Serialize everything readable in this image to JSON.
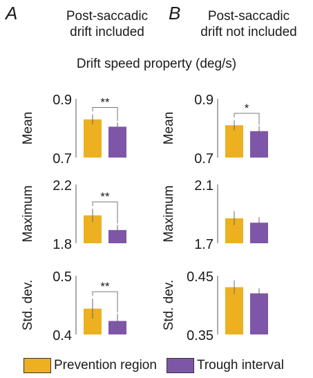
{
  "panels": {
    "A": {
      "letter": "A",
      "title_line1": "Post-saccadic",
      "title_line2": "drift included"
    },
    "B": {
      "letter": "B",
      "title_line1": "Post-saccadic",
      "title_line2": "drift not included"
    }
  },
  "main_title": "Drift speed property (deg/s)",
  "legend": {
    "prevention": {
      "label": "Prevention region",
      "color": "#ecb021"
    },
    "trough": {
      "label": "Trough interval",
      "color": "#7e56a8"
    }
  },
  "chart_data": [
    {
      "type": "bar",
      "panel": "A",
      "ylabel": "Mean",
      "ylim": [
        0.7,
        0.9
      ],
      "yticks": [
        "0.7",
        "0.9"
      ],
      "categories": [
        "Prevention region",
        "Trough interval"
      ],
      "values": [
        0.83,
        0.805
      ],
      "errors": [
        0.017,
        0.015
      ],
      "significance": "**"
    },
    {
      "type": "bar",
      "panel": "A",
      "ylabel": "Maximum",
      "ylim": [
        1.8,
        2.2
      ],
      "yticks": [
        "1.8",
        "2.2"
      ],
      "categories": [
        "Prevention region",
        "Trough interval"
      ],
      "values": [
        1.99,
        1.89
      ],
      "errors": [
        0.045,
        0.035
      ],
      "significance": "**"
    },
    {
      "type": "bar",
      "panel": "A",
      "ylabel": "Std. dev.",
      "ylim": [
        0.4,
        0.5
      ],
      "yticks": [
        "0.4",
        "0.5"
      ],
      "categories": [
        "Prevention region",
        "Trough interval"
      ],
      "values": [
        0.444,
        0.423
      ],
      "errors": [
        0.017,
        0.012
      ],
      "significance": "**"
    },
    {
      "type": "bar",
      "panel": "B",
      "ylabel": "Mean",
      "ylim": [
        0.7,
        0.9
      ],
      "yticks": [
        "0.7",
        "0.9"
      ],
      "categories": [
        "Prevention region",
        "Trough interval"
      ],
      "values": [
        0.81,
        0.79
      ],
      "errors": [
        0.017,
        0.017
      ],
      "significance": "*"
    },
    {
      "type": "bar",
      "panel": "B",
      "ylabel": "Maximum",
      "ylim": [
        1.7,
        2.1
      ],
      "yticks": [
        "1.7",
        "2.1"
      ],
      "categories": [
        "Prevention region",
        "Trough interval"
      ],
      "values": [
        1.87,
        1.84
      ],
      "errors": [
        0.048,
        0.037
      ],
      "significance": ""
    },
    {
      "type": "bar",
      "panel": "B",
      "ylabel": "Std. dev.",
      "ylim": [
        0.35,
        0.45
      ],
      "yticks": [
        "0.35",
        "0.45"
      ],
      "categories": [
        "Prevention region",
        "Trough interval"
      ],
      "values": [
        0.4305,
        0.42
      ],
      "errors": [
        0.0115,
        0.0085
      ],
      "significance": ""
    }
  ]
}
